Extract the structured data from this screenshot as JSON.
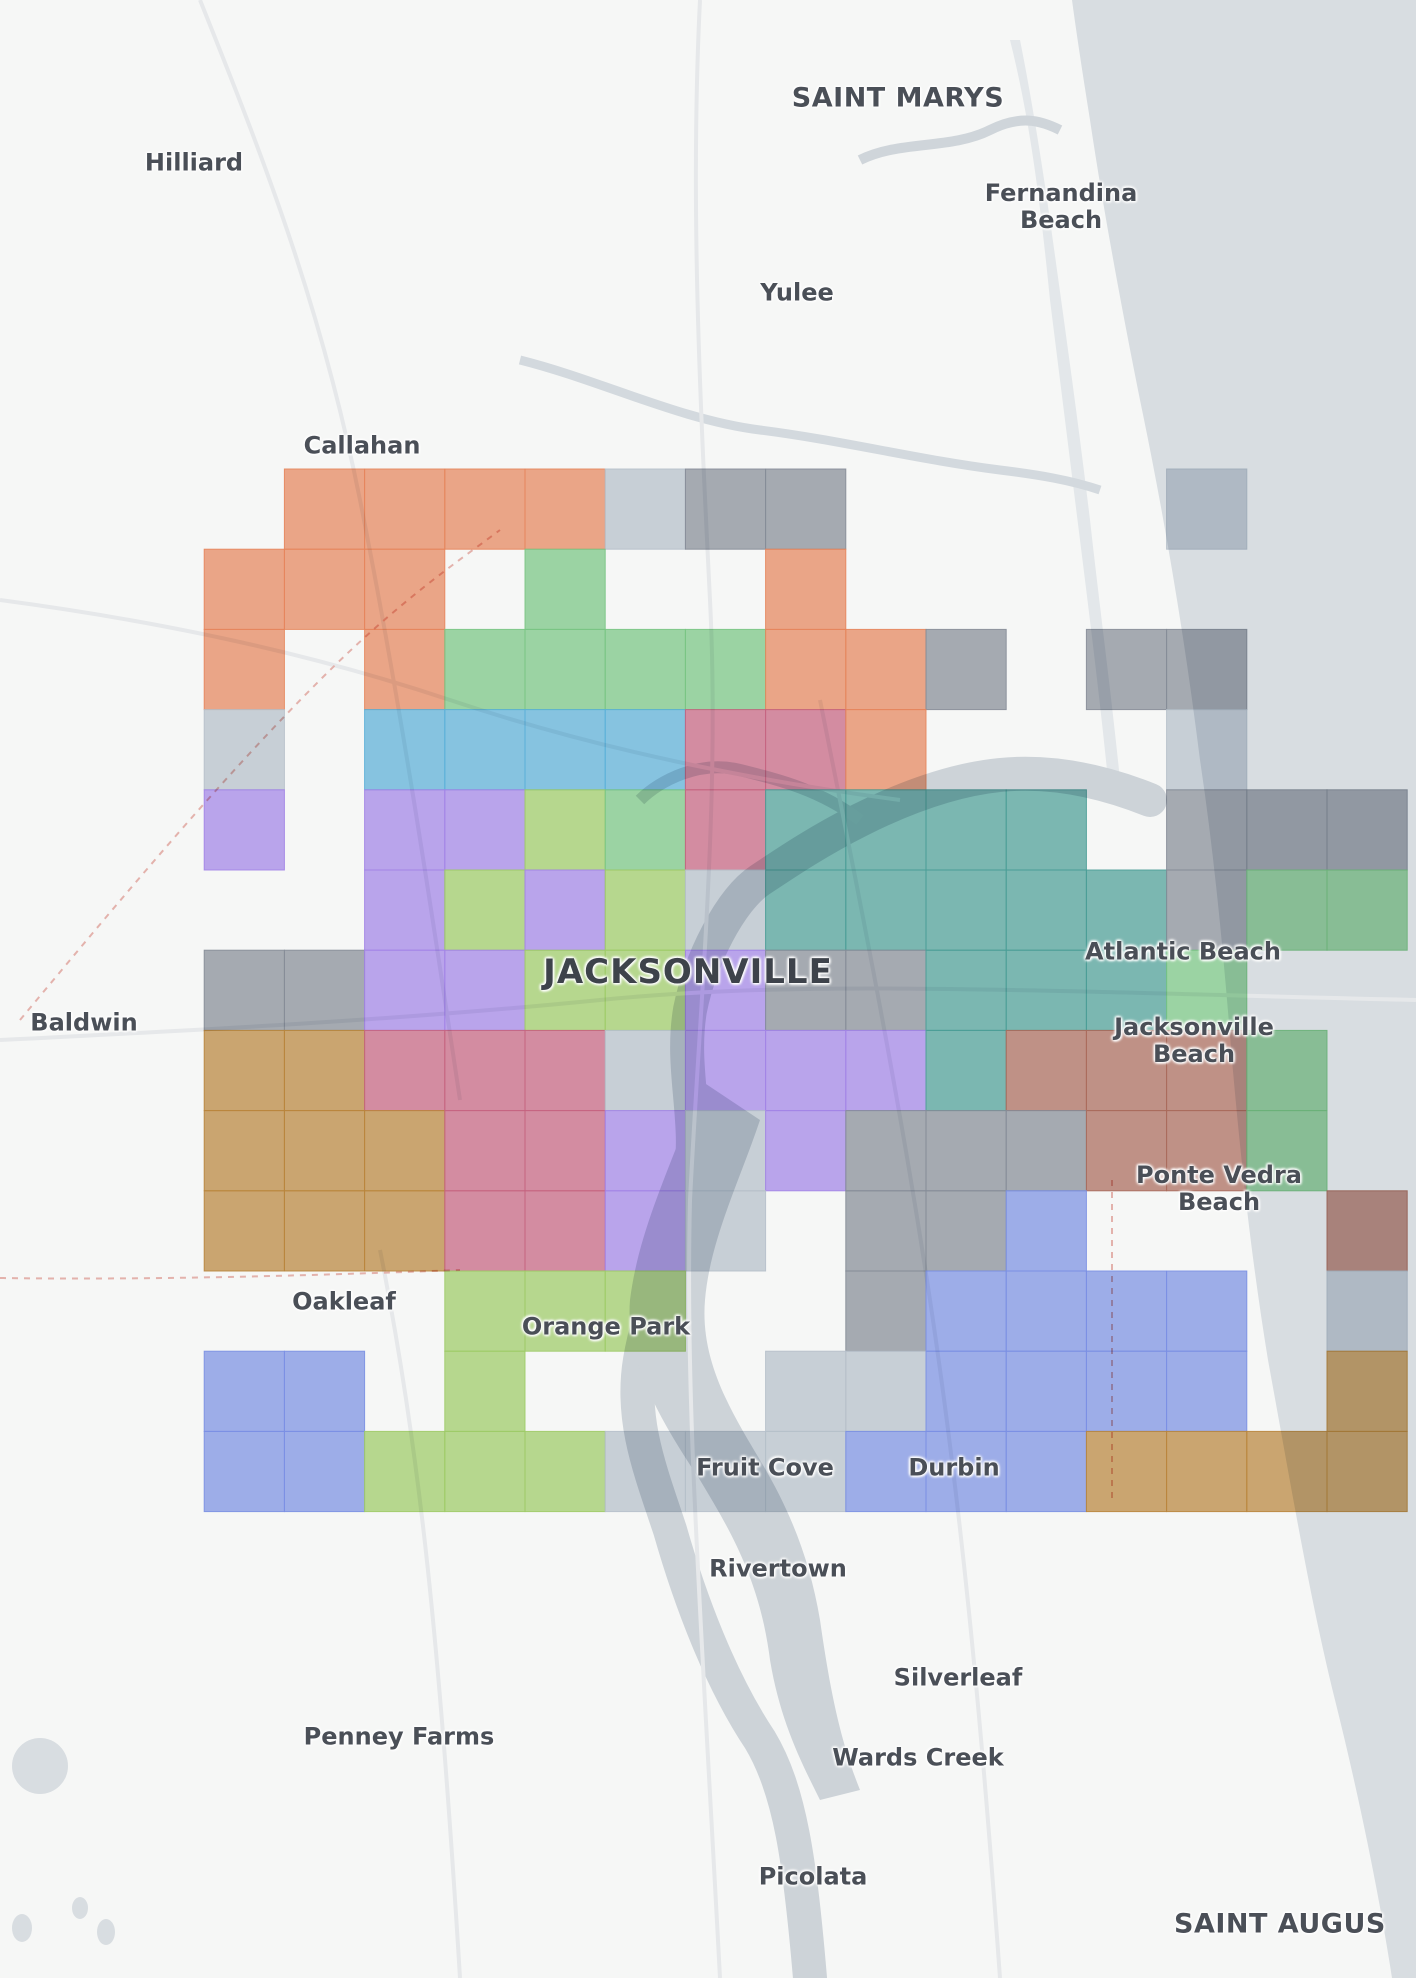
{
  "map": {
    "labels": {
      "saint_marys": "SAINT MARYS",
      "hilliard": "Hilliard",
      "fernandina_beach": "Fernandina\nBeach",
      "yulee": "Yulee",
      "callahan": "Callahan",
      "jacksonville": "JACKSONVILLE",
      "baldwin": "Baldwin",
      "atlantic_beach": "Atlantic Beach",
      "jacksonville_beach": "Jacksonville\nBeach",
      "ponte_vedra_beach": "Ponte Vedra\nBeach",
      "oakleaf": "Oakleaf",
      "orange_park": "Orange Park",
      "fruit_cove": "Fruit Cove",
      "durbin": "Durbin",
      "rivertown": "Rivertown",
      "silverleaf": "Silverleaf",
      "penney_farms": "Penney Farms",
      "wards_creek": "Wards Creek",
      "picolata": "Picolata",
      "saint_augustine": "SAINT AUGUS"
    },
    "grid_colors": {
      "O": "#ee8a5f",
      "C": "#bdc6d1",
      "D": "#8b919d",
      "G": "#7dcc88",
      "B": "#5eb6e0",
      "R": "#cd6785",
      "P": "#a888f0",
      "L": "#a4d16a",
      "T": "#4ea39c",
      "N": "#c08a3e",
      "M": "#b06e5e",
      "I": "#7f95ec"
    },
    "grid": [
      "..OOOOCDD....C..",
      ".OOO.G..O.......",
      ".O.OGGGGOOD.DD..",
      ".C.BBBBRRO...C..",
      ".P.PPLGRTTTT.DDD",
      "...PLPLCTTTTTDGG",
      ".DDPPLLPDDTTTG..",
      ".NNRRRCPPPTMMMG.",
      ".NNNRRPCPDDDMMG.",
      ".NNNRRPC.DDI...M",
      "....LLL..DIIII.C",
      ".II.L...CCIIII.N",
      ".IILLLCCCIIINNNN"
    ]
  }
}
